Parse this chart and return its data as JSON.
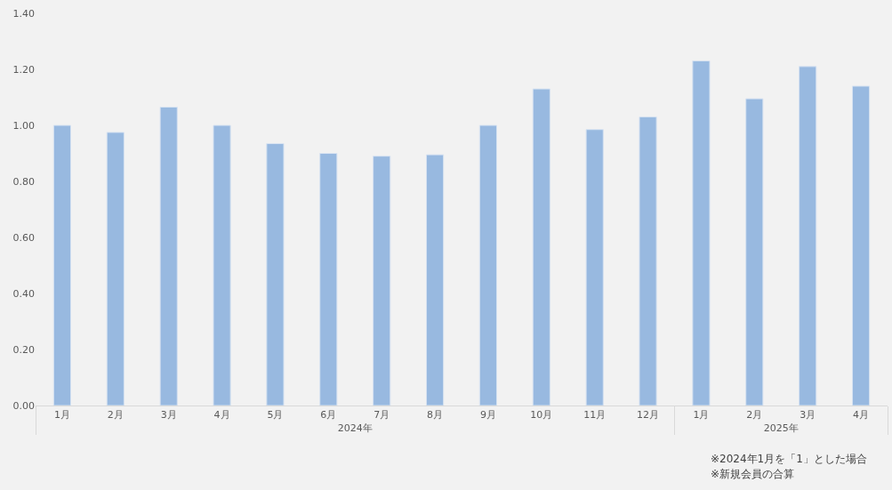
{
  "chart_data": {
    "type": "bar",
    "categories": [
      "1月",
      "2月",
      "3月",
      "4月",
      "5月",
      "6月",
      "7月",
      "8月",
      "9月",
      "10月",
      "11月",
      "12月",
      "1月",
      "2月",
      "3月",
      "4月"
    ],
    "values": [
      1.0,
      0.975,
      1.065,
      1.0,
      0.935,
      0.9,
      0.89,
      0.895,
      1.0,
      1.13,
      0.985,
      1.03,
      1.23,
      1.095,
      1.21,
      1.14
    ],
    "color": "#98b9e0",
    "ylim": [
      0,
      1.4
    ],
    "yticks": [
      {
        "value": 0,
        "label": "0.00"
      },
      {
        "value": 0.2,
        "label": "0.20"
      },
      {
        "value": 0.4,
        "label": "0.40"
      },
      {
        "value": 0.6,
        "label": "0.60"
      },
      {
        "value": 0.8,
        "label": "0.80"
      },
      {
        "value": 1.0,
        "label": "1.00"
      },
      {
        "value": 1.2,
        "label": "1.20"
      },
      {
        "value": 1.4,
        "label": "1.40"
      }
    ],
    "grid": false,
    "legend": false,
    "annotations": [
      "2024年",
      "2025年",
      "※2024年1月を「1」とした場合",
      "※新規会員の合算"
    ]
  }
}
